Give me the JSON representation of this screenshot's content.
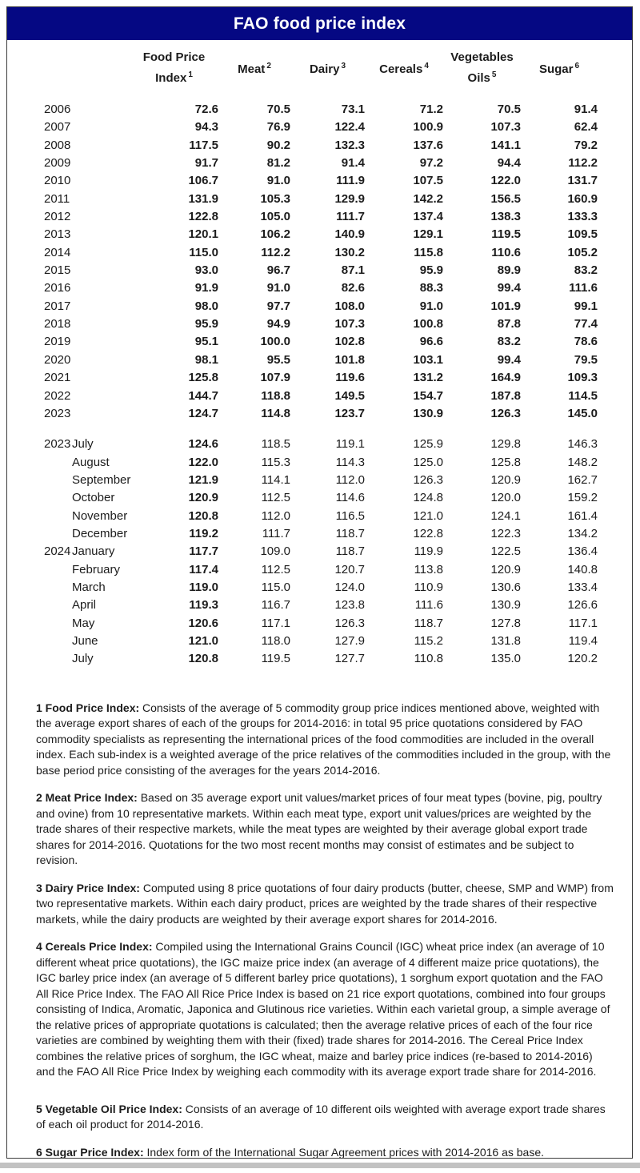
{
  "title": "FAO food price index",
  "colors": {
    "header_bg": "#050883",
    "header_fg": "#ffffff",
    "border": "#3c3c3c",
    "strip": "#c2c2c2",
    "text": "#1c1c1c"
  },
  "table": {
    "headers": [
      {
        "line1": "Food Price",
        "line2": "Index",
        "sup": "1"
      },
      {
        "line1": "Meat",
        "line2": "",
        "sup": "2"
      },
      {
        "line1": "Dairy",
        "line2": "",
        "sup": "3"
      },
      {
        "line1": "Cereals",
        "line2": "",
        "sup": "4"
      },
      {
        "line1": "Vegetables",
        "line2": "Oils",
        "sup": "5"
      },
      {
        "line1": "Sugar",
        "line2": "",
        "sup": "6"
      }
    ],
    "yearly": [
      {
        "year": "2006",
        "values": [
          "72.6",
          "70.5",
          "73.1",
          "71.2",
          "70.5",
          "91.4"
        ]
      },
      {
        "year": "2007",
        "values": [
          "94.3",
          "76.9",
          "122.4",
          "100.9",
          "107.3",
          "62.4"
        ]
      },
      {
        "year": "2008",
        "values": [
          "117.5",
          "90.2",
          "132.3",
          "137.6",
          "141.1",
          "79.2"
        ]
      },
      {
        "year": "2009",
        "values": [
          "91.7",
          "81.2",
          "91.4",
          "97.2",
          "94.4",
          "112.2"
        ]
      },
      {
        "year": "2010",
        "values": [
          "106.7",
          "91.0",
          "111.9",
          "107.5",
          "122.0",
          "131.7"
        ]
      },
      {
        "year": "2011",
        "values": [
          "131.9",
          "105.3",
          "129.9",
          "142.2",
          "156.5",
          "160.9"
        ]
      },
      {
        "year": "2012",
        "values": [
          "122.8",
          "105.0",
          "111.7",
          "137.4",
          "138.3",
          "133.3"
        ]
      },
      {
        "year": "2013",
        "values": [
          "120.1",
          "106.2",
          "140.9",
          "129.1",
          "119.5",
          "109.5"
        ]
      },
      {
        "year": "2014",
        "values": [
          "115.0",
          "112.2",
          "130.2",
          "115.8",
          "110.6",
          "105.2"
        ]
      },
      {
        "year": "2015",
        "values": [
          "93.0",
          "96.7",
          "87.1",
          "95.9",
          "89.9",
          "83.2"
        ]
      },
      {
        "year": "2016",
        "values": [
          "91.9",
          "91.0",
          "82.6",
          "88.3",
          "99.4",
          "111.6"
        ]
      },
      {
        "year": "2017",
        "values": [
          "98.0",
          "97.7",
          "108.0",
          "91.0",
          "101.9",
          "99.1"
        ]
      },
      {
        "year": "2018",
        "values": [
          "95.9",
          "94.9",
          "107.3",
          "100.8",
          "87.8",
          "77.4"
        ]
      },
      {
        "year": "2019",
        "values": [
          "95.1",
          "100.0",
          "102.8",
          "96.6",
          "83.2",
          "78.6"
        ]
      },
      {
        "year": "2020",
        "values": [
          "98.1",
          "95.5",
          "101.8",
          "103.1",
          "99.4",
          "79.5"
        ]
      },
      {
        "year": "2021",
        "values": [
          "125.8",
          "107.9",
          "119.6",
          "131.2",
          "164.9",
          "109.3"
        ]
      },
      {
        "year": "2022",
        "values": [
          "144.7",
          "118.8",
          "149.5",
          "154.7",
          "187.8",
          "114.5"
        ]
      },
      {
        "year": "2023",
        "values": [
          "124.7",
          "114.8",
          "123.7",
          "130.9",
          "126.3",
          "145.0"
        ]
      }
    ],
    "monthly": [
      {
        "year": "2023",
        "month": "July",
        "values": [
          "124.6",
          "118.5",
          "119.1",
          "125.9",
          "129.8",
          "146.3"
        ]
      },
      {
        "year": "",
        "month": "August",
        "values": [
          "122.0",
          "115.3",
          "114.3",
          "125.0",
          "125.8",
          "148.2"
        ]
      },
      {
        "year": "",
        "month": "September",
        "values": [
          "121.9",
          "114.1",
          "112.0",
          "126.3",
          "120.9",
          "162.7"
        ]
      },
      {
        "year": "",
        "month": "October",
        "values": [
          "120.9",
          "112.5",
          "114.6",
          "124.8",
          "120.0",
          "159.2"
        ]
      },
      {
        "year": "",
        "month": "November",
        "values": [
          "120.8",
          "112.0",
          "116.5",
          "121.0",
          "124.1",
          "161.4"
        ]
      },
      {
        "year": "",
        "month": "December",
        "values": [
          "119.2",
          "111.7",
          "118.7",
          "122.8",
          "122.3",
          "134.2"
        ]
      },
      {
        "year": "2024",
        "month": "January",
        "values": [
          "117.7",
          "109.0",
          "118.7",
          "119.9",
          "122.5",
          "136.4"
        ]
      },
      {
        "year": "",
        "month": "February",
        "values": [
          "117.4",
          "112.5",
          "120.7",
          "113.8",
          "120.9",
          "140.8"
        ]
      },
      {
        "year": "",
        "month": "March",
        "values": [
          "119.0",
          "115.0",
          "124.0",
          "110.9",
          "130.6",
          "133.4"
        ]
      },
      {
        "year": "",
        "month": "April",
        "values": [
          "119.3",
          "116.7",
          "123.8",
          "111.6",
          "130.9",
          "126.6"
        ]
      },
      {
        "year": "",
        "month": "May",
        "values": [
          "120.6",
          "117.1",
          "126.3",
          "118.7",
          "127.8",
          "117.1"
        ]
      },
      {
        "year": "",
        "month": "June",
        "values": [
          "121.0",
          "118.0",
          "127.9",
          "115.2",
          "131.8",
          "119.4"
        ]
      },
      {
        "year": "",
        "month": "July",
        "values": [
          "120.8",
          "119.5",
          "127.7",
          "110.8",
          "135.0",
          "120.2"
        ]
      }
    ]
  },
  "footnotes": [
    {
      "label": "1 Food Price Index:",
      "text": " Consists of the average of 5 commodity group price indices mentioned above, weighted with the average export shares of each of the groups for 2014-2016: in total 95 price quotations considered by FAO commodity specialists as representing the international prices of the food commodities are included in the overall index. Each sub-index is a weighted average of the price relatives of the commodities included in the group, with the base period price consisting of the averages for the years 2014-2016."
    },
    {
      "label": "2 Meat Price Index:",
      "text": " Based on 35 average export unit values/market prices of four meat types (bovine, pig, poultry and ovine) from 10 representative markets. Within each meat type, export unit values/prices are weighted by the trade shares of their respective markets, while the meat types are weighted by their average global export trade shares for 2014-2016. Quotations for the two most recent months may consist of estimates and be subject to revision."
    },
    {
      "label": "3 Dairy Price Index:",
      "text": " Computed using 8 price quotations of four dairy products (butter, cheese, SMP and WMP) from two representative markets. Within each dairy product, prices are weighted by the trade shares of their respective markets, while the dairy products are weighted by their average export shares for 2014-2016."
    },
    {
      "label": "4 Cereals Price Index:",
      "text": " Compiled using the International Grains Council (IGC) wheat price index (an average of 10 different wheat price quotations), the IGC maize price index (an average of 4 different maize price quotations), the IGC barley price index (an average of 5 different barley price quotations), 1 sorghum export quotation and the FAO All Rice Price Index. The FAO All Rice Price Index is based on 21 rice export quotations, combined into four groups consisting of Indica, Aromatic, Japonica and Glutinous rice varieties. Within each varietal group, a simple average of the relative prices of appropriate quotations is calculated; then the average relative prices of each of the four rice varieties are combined by weighting them with their (fixed) trade shares for 2014-2016. The Cereal Price Index combines the relative prices of sorghum, the IGC wheat, maize and barley price indices (re-based to 2014-2016) and the FAO All Rice Price Index by weighing each commodity with its average export trade share for 2014-2016."
    },
    {
      "label": "5 Vegetable Oil Price Index:",
      "text": " Consists of an average of 10 different oils weighted with average export trade shares of each oil product for 2014-2016."
    },
    {
      "label": "6 Sugar Price Index:",
      "text": "  Index form of the International Sugar Agreement prices with 2014-2016 as base."
    }
  ]
}
